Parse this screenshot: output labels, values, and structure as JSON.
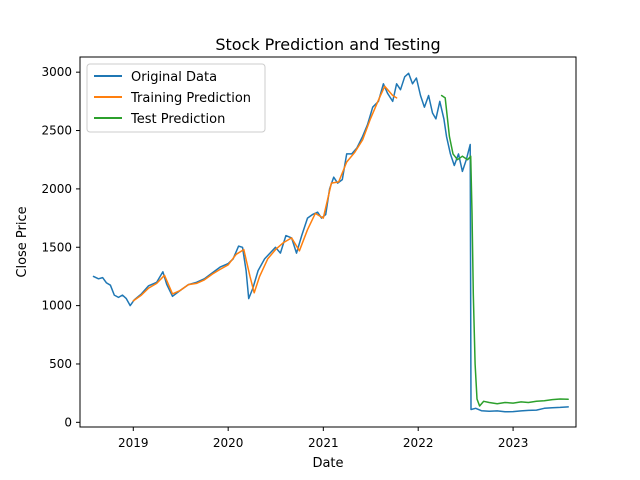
{
  "chart_data": {
    "type": "line",
    "title": "Stock Prediction and Testing",
    "xlabel": "Date",
    "ylabel": "Close Price",
    "xlim": [
      "2018-06-10",
      "2023-08-31"
    ],
    "ylim": [
      -40,
      3130
    ],
    "x_ticks": [
      "2019-01-01",
      "2020-01-01",
      "2021-01-01",
      "2022-01-01",
      "2023-01-01"
    ],
    "x_tick_labels": [
      "2019",
      "2020",
      "2021",
      "2022",
      "2023"
    ],
    "y_ticks": [
      0,
      500,
      1000,
      1500,
      2000,
      2500,
      3000
    ],
    "y_tick_labels": [
      "0",
      "500",
      "1000",
      "1500",
      "2000",
      "2500",
      "3000"
    ],
    "grid": false,
    "legend_position": "top-left",
    "series": [
      {
        "name": "Original Data",
        "color": "#1f77b4",
        "points": [
          [
            "2018-08-01",
            1250
          ],
          [
            "2018-08-20",
            1230
          ],
          [
            "2018-09-05",
            1240
          ],
          [
            "2018-09-20",
            1195
          ],
          [
            "2018-10-05",
            1175
          ],
          [
            "2018-10-20",
            1090
          ],
          [
            "2018-11-05",
            1070
          ],
          [
            "2018-11-20",
            1090
          ],
          [
            "2018-12-05",
            1060
          ],
          [
            "2018-12-20",
            1000
          ],
          [
            "2019-01-05",
            1050
          ],
          [
            "2019-02-01",
            1100
          ],
          [
            "2019-03-01",
            1170
          ],
          [
            "2019-04-01",
            1200
          ],
          [
            "2019-04-25",
            1290
          ],
          [
            "2019-05-10",
            1180
          ],
          [
            "2019-06-01",
            1080
          ],
          [
            "2019-07-01",
            1130
          ],
          [
            "2019-08-01",
            1180
          ],
          [
            "2019-09-01",
            1200
          ],
          [
            "2019-10-01",
            1230
          ],
          [
            "2019-11-01",
            1280
          ],
          [
            "2019-12-01",
            1330
          ],
          [
            "2020-01-01",
            1360
          ],
          [
            "2020-01-20",
            1400
          ],
          [
            "2020-02-10",
            1510
          ],
          [
            "2020-02-25",
            1500
          ],
          [
            "2020-03-10",
            1300
          ],
          [
            "2020-03-20",
            1060
          ],
          [
            "2020-04-05",
            1150
          ],
          [
            "2020-04-25",
            1300
          ],
          [
            "2020-05-20",
            1400
          ],
          [
            "2020-06-10",
            1450
          ],
          [
            "2020-07-01",
            1500
          ],
          [
            "2020-07-20",
            1450
          ],
          [
            "2020-08-10",
            1600
          ],
          [
            "2020-09-01",
            1580
          ],
          [
            "2020-09-20",
            1450
          ],
          [
            "2020-10-10",
            1600
          ],
          [
            "2020-11-01",
            1750
          ],
          [
            "2020-11-20",
            1780
          ],
          [
            "2020-12-10",
            1800
          ],
          [
            "2020-12-25",
            1750
          ],
          [
            "2021-01-10",
            1780
          ],
          [
            "2021-01-25",
            2000
          ],
          [
            "2021-02-10",
            2100
          ],
          [
            "2021-02-25",
            2050
          ],
          [
            "2021-03-15",
            2080
          ],
          [
            "2021-04-01",
            2300
          ],
          [
            "2021-04-20",
            2300
          ],
          [
            "2021-05-10",
            2350
          ],
          [
            "2021-06-01",
            2450
          ],
          [
            "2021-06-20",
            2550
          ],
          [
            "2021-07-10",
            2700
          ],
          [
            "2021-08-01",
            2750
          ],
          [
            "2021-08-20",
            2900
          ],
          [
            "2021-09-05",
            2820
          ],
          [
            "2021-09-25",
            2750
          ],
          [
            "2021-10-10",
            2900
          ],
          [
            "2021-10-25",
            2850
          ],
          [
            "2021-11-10",
            2960
          ],
          [
            "2021-11-25",
            2990
          ],
          [
            "2021-12-10",
            2900
          ],
          [
            "2021-12-25",
            2950
          ],
          [
            "2022-01-10",
            2800
          ],
          [
            "2022-01-25",
            2700
          ],
          [
            "2022-02-10",
            2800
          ],
          [
            "2022-02-25",
            2650
          ],
          [
            "2022-03-10",
            2600
          ],
          [
            "2022-03-25",
            2750
          ],
          [
            "2022-04-10",
            2600
          ],
          [
            "2022-04-20",
            2450
          ],
          [
            "2022-05-05",
            2300
          ],
          [
            "2022-05-20",
            2200
          ],
          [
            "2022-06-05",
            2300
          ],
          [
            "2022-06-20",
            2150
          ],
          [
            "2022-07-05",
            2250
          ],
          [
            "2022-07-20",
            2380
          ],
          [
            "2022-07-23",
            110
          ],
          [
            "2022-08-10",
            120
          ],
          [
            "2022-09-01",
            100
          ],
          [
            "2022-10-01",
            95
          ],
          [
            "2022-11-01",
            98
          ],
          [
            "2022-12-01",
            90
          ],
          [
            "2023-01-01",
            92
          ],
          [
            "2023-02-01",
            98
          ],
          [
            "2023-03-01",
            102
          ],
          [
            "2023-04-01",
            105
          ],
          [
            "2023-05-01",
            120
          ],
          [
            "2023-06-01",
            125
          ],
          [
            "2023-07-01",
            128
          ],
          [
            "2023-08-01",
            132
          ]
        ]
      },
      {
        "name": "Training Prediction",
        "color": "#ff7f0e",
        "points": [
          [
            "2019-01-01",
            1040
          ],
          [
            "2019-02-01",
            1090
          ],
          [
            "2019-03-01",
            1150
          ],
          [
            "2019-04-01",
            1190
          ],
          [
            "2019-05-01",
            1260
          ],
          [
            "2019-06-01",
            1100
          ],
          [
            "2019-07-01",
            1130
          ],
          [
            "2019-08-01",
            1180
          ],
          [
            "2019-09-01",
            1190
          ],
          [
            "2019-10-01",
            1220
          ],
          [
            "2019-11-01",
            1270
          ],
          [
            "2019-12-01",
            1310
          ],
          [
            "2020-01-01",
            1350
          ],
          [
            "2020-02-01",
            1440
          ],
          [
            "2020-03-01",
            1480
          ],
          [
            "2020-03-25",
            1250
          ],
          [
            "2020-04-10",
            1110
          ],
          [
            "2020-05-01",
            1250
          ],
          [
            "2020-06-01",
            1400
          ],
          [
            "2020-07-01",
            1480
          ],
          [
            "2020-08-01",
            1540
          ],
          [
            "2020-09-01",
            1580
          ],
          [
            "2020-10-01",
            1470
          ],
          [
            "2020-11-01",
            1650
          ],
          [
            "2020-12-01",
            1790
          ],
          [
            "2021-01-01",
            1750
          ],
          [
            "2021-02-01",
            2050
          ],
          [
            "2021-03-01",
            2060
          ],
          [
            "2021-04-01",
            2230
          ],
          [
            "2021-05-01",
            2310
          ],
          [
            "2021-06-01",
            2420
          ],
          [
            "2021-07-01",
            2600
          ],
          [
            "2021-08-01",
            2760
          ],
          [
            "2021-08-25",
            2880
          ],
          [
            "2021-09-25",
            2800
          ],
          [
            "2021-10-10",
            2780
          ]
        ]
      },
      {
        "name": "Test Prediction",
        "color": "#2ca02c",
        "points": [
          [
            "2022-04-01",
            2800
          ],
          [
            "2022-04-15",
            2780
          ],
          [
            "2022-05-01",
            2450
          ],
          [
            "2022-05-15",
            2300
          ],
          [
            "2022-06-01",
            2250
          ],
          [
            "2022-06-20",
            2280
          ],
          [
            "2022-07-10",
            2250
          ],
          [
            "2022-07-22",
            2280
          ],
          [
            "2022-07-27",
            1800
          ],
          [
            "2022-08-01",
            1100
          ],
          [
            "2022-08-08",
            500
          ],
          [
            "2022-08-15",
            200
          ],
          [
            "2022-08-25",
            140
          ],
          [
            "2022-09-10",
            180
          ],
          [
            "2022-10-01",
            170
          ],
          [
            "2022-11-01",
            160
          ],
          [
            "2022-12-01",
            170
          ],
          [
            "2023-01-01",
            165
          ],
          [
            "2023-02-01",
            175
          ],
          [
            "2023-03-01",
            170
          ],
          [
            "2023-04-01",
            180
          ],
          [
            "2023-05-01",
            185
          ],
          [
            "2023-06-01",
            195
          ],
          [
            "2023-07-01",
            200
          ],
          [
            "2023-08-01",
            198
          ]
        ]
      }
    ]
  }
}
